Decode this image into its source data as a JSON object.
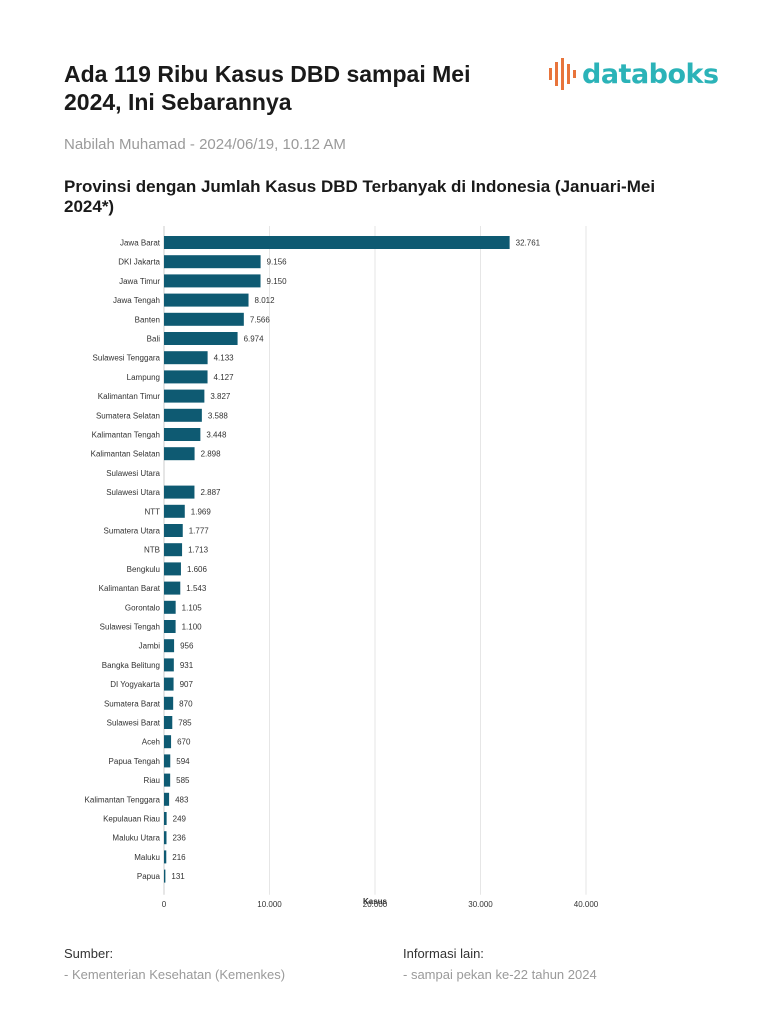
{
  "header": {
    "title": "Ada 119 Ribu Kasus DBD sampai Mei 2024, Ini Sebarannya",
    "logo_text": "databoks",
    "byline": "Nabilah Muhamad - 2024/06/19, 10.12 AM"
  },
  "chart_title": "Provinsi dengan Jumlah Kasus DBD Terbanyak di Indonesia (Januari-Mei 2024*)",
  "colors": {
    "bar": "#0e5a72",
    "grid": "#e6e6e6",
    "logo_teal": "#2bb3b8",
    "logo_orange": "#e8743b"
  },
  "chart_data": {
    "type": "bar",
    "orientation": "horizontal",
    "xlabel": "Kasus",
    "xlim": [
      0,
      40000
    ],
    "xticks": [
      "0",
      "10.000",
      "20.000",
      "30.000",
      "40.000"
    ],
    "grid": true,
    "categories": [
      "Jawa Barat",
      "DKI Jakarta",
      "Jawa Timur",
      "Jawa Tengah",
      "Banten",
      "Bali",
      "Sulawesi Tenggara",
      "Lampung",
      "Kalimantan Timur",
      "Sumatera Selatan",
      "Kalimantan Tengah",
      "Kalimantan Selatan",
      "Sulawesi Utara",
      "Sulawesi Utara",
      "NTT",
      "Sumatera Utara",
      "NTB",
      "Bengkulu",
      "Kalimantan Barat",
      "Gorontalo",
      "Sulawesi Tengah",
      "Jambi",
      "Bangka Belitung",
      "DI Yogyakarta",
      "Sumatera Barat",
      "Sulawesi Barat",
      "Aceh",
      "Papua Tengah",
      "Riau",
      "Kalimantan Tenggara",
      "Kepulauan Riau",
      "Maluku Utara",
      "Maluku",
      "Papua"
    ],
    "values": [
      32761,
      9156,
      9150,
      8012,
      7566,
      6974,
      4133,
      4127,
      3827,
      3588,
      3448,
      2898,
      null,
      2887,
      1969,
      1777,
      1713,
      1606,
      1543,
      1105,
      1100,
      956,
      931,
      907,
      870,
      785,
      670,
      594,
      585,
      483,
      249,
      236,
      216,
      131
    ],
    "value_labels": [
      "32.761",
      "9.156",
      "9.150",
      "8.012",
      "7.566",
      "6.974",
      "4.133",
      "4.127",
      "3.827",
      "3.588",
      "3.448",
      "2.898",
      "",
      "2.887",
      "1.969",
      "1.777",
      "1.713",
      "1.606",
      "1.543",
      "1.105",
      "1.100",
      "956",
      "931",
      "907",
      "870",
      "785",
      "670",
      "594",
      "585",
      "483",
      "249",
      "236",
      "216",
      "131"
    ]
  },
  "footer": {
    "source_label": "Sumber:",
    "source_value": "- Kementerian Kesehatan (Kemenkes)",
    "info_label": "Informasi lain:",
    "info_value": "- sampai pekan ke-22 tahun 2024"
  }
}
